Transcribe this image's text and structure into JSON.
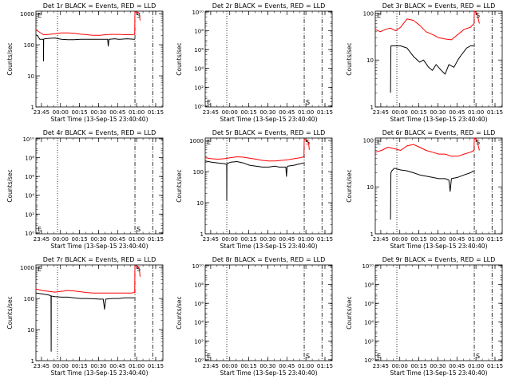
{
  "figure": {
    "xlabel": "Start Time (13-Sep-15 23:40:40)",
    "ylabel": "Counts/sec",
    "xticks": [
      "23:45",
      "00:00",
      "00:15",
      "00:30",
      "00:45",
      "01:00",
      "01:15"
    ],
    "xtick_minutes": [
      4.33,
      19.33,
      34.33,
      49.33,
      64.33,
      79.33,
      94.33
    ],
    "xlim_minutes": [
      0,
      100
    ],
    "vlines_minutes": {
      "dotted": 17,
      "dash_dot_1": 78,
      "dash_dot_2": 92
    },
    "colors": {
      "events": "#000000",
      "lld": "#ff0000"
    },
    "markers": {
      "start": "E",
      "end": "S"
    }
  },
  "chart_data": [
    {
      "type": "line",
      "title": "Det 1r BLACK = Events, RED = LLD",
      "scale": "log",
      "ylim": [
        1,
        1200
      ],
      "yticks": [
        "1",
        "10",
        "100",
        "1000"
      ],
      "series": [
        {
          "name": "Events",
          "color": "#000000",
          "x": [
            0,
            1.5,
            3,
            5.9,
            6.0,
            6.1,
            7,
            10,
            15,
            20,
            25,
            30,
            35,
            45,
            55,
            56.5,
            57,
            57.5,
            58,
            62,
            65,
            66,
            72,
            77.5,
            78
          ],
          "y": [
            210,
            190,
            150,
            150,
            30,
            150,
            155,
            160,
            165,
            150,
            145,
            145,
            150,
            150,
            150,
            150,
            90,
            150,
            150,
            155,
            150,
            150,
            155,
            150,
            150
          ]
        },
        {
          "name": "LLD",
          "color": "#ff0000",
          "x": [
            0,
            3,
            6,
            10,
            15,
            20,
            25,
            30,
            35,
            40,
            45,
            50,
            55,
            60,
            65,
            70,
            75,
            77.8,
            78,
            80.5,
            81.5,
            82
          ],
          "y": [
            300,
            250,
            210,
            215,
            225,
            240,
            240,
            235,
            220,
            210,
            200,
            200,
            210,
            215,
            215,
            210,
            210,
            215,
            1150,
            1100,
            1000,
            600
          ]
        }
      ]
    },
    {
      "type": "line",
      "title": "Det 2r BLACK = Events, RED = LLD",
      "scale": "log",
      "ylim": [
        0.8,
        12000000000
      ],
      "yticks": [
        "10⁰",
        "10²",
        "10⁴",
        "10⁶",
        "10⁸",
        "10¹⁰"
      ],
      "series": []
    },
    {
      "type": "line",
      "title": "Det 3r BLACK = Events, RED = LLD",
      "scale": "log",
      "ylim": [
        1,
        110
      ],
      "yticks": [
        "1",
        "10",
        "100"
      ],
      "series": [
        {
          "name": "Events",
          "color": "#000000",
          "x": [
            12,
            12.3,
            13,
            15,
            20,
            25,
            30,
            35,
            38,
            42,
            45,
            48,
            52,
            55,
            58,
            62,
            65,
            68,
            72,
            75,
            77.5
          ],
          "y": [
            2,
            20,
            20,
            20,
            20,
            18,
            12,
            9,
            10,
            7,
            6,
            8,
            6,
            5,
            8,
            7,
            10,
            13,
            18,
            20,
            20
          ]
        },
        {
          "name": "LLD",
          "color": "#ff0000",
          "x": [
            0,
            4,
            8,
            12,
            16,
            20,
            25,
            30,
            35,
            40,
            45,
            50,
            55,
            60,
            65,
            70,
            75,
            77.8,
            78,
            80,
            82
          ],
          "y": [
            45,
            40,
            45,
            48,
            42,
            50,
            75,
            70,
            55,
            40,
            35,
            30,
            28,
            27,
            35,
            45,
            50,
            60,
            110,
            100,
            60
          ]
        }
      ]
    },
    {
      "type": "line",
      "title": "Det 4r BLACK = Events, RED = LLD",
      "scale": "log",
      "ylim": [
        0.8,
        12000000000
      ],
      "yticks": [
        "10⁰",
        "10²",
        "10⁴",
        "10⁶",
        "10⁸",
        "10¹⁰"
      ],
      "series": []
    },
    {
      "type": "line",
      "title": "Det 5r BLACK = Events, RED = LLD",
      "scale": "log",
      "ylim": [
        1,
        1200
      ],
      "yticks": [
        "1",
        "10",
        "100",
        "1000"
      ],
      "series": [
        {
          "name": "Events",
          "color": "#000000",
          "x": [
            0,
            5,
            10,
            15,
            16.9,
            17,
            17.1,
            20,
            25,
            30,
            35,
            40,
            45,
            50,
            55,
            58,
            60,
            63.5,
            64,
            64.5,
            65,
            70,
            75,
            77.5
          ],
          "y": [
            220,
            200,
            190,
            180,
            170,
            12,
            180,
            200,
            210,
            190,
            160,
            150,
            140,
            140,
            150,
            140,
            140,
            140,
            70,
            140,
            150,
            160,
            180,
            190
          ]
        },
        {
          "name": "LLD",
          "color": "#ff0000",
          "x": [
            0,
            5,
            10,
            15,
            20,
            25,
            30,
            35,
            40,
            45,
            50,
            55,
            60,
            65,
            70,
            75,
            77.8,
            78,
            80,
            81.5,
            82
          ],
          "y": [
            280,
            260,
            250,
            260,
            280,
            300,
            290,
            270,
            250,
            230,
            220,
            220,
            230,
            240,
            260,
            280,
            300,
            1100,
            1050,
            800,
            500
          ]
        }
      ]
    },
    {
      "type": "line",
      "title": "Det 6r BLACK = Events, RED = LLD",
      "scale": "log",
      "ylim": [
        1,
        110
      ],
      "yticks": [
        "1",
        "10",
        "100"
      ],
      "series": [
        {
          "name": "Events",
          "color": "#000000",
          "x": [
            12,
            12.3,
            13,
            15,
            20,
            25,
            30,
            35,
            40,
            45,
            50,
            55,
            58,
            59,
            60,
            65,
            70,
            75,
            77.5
          ],
          "y": [
            2,
            20,
            22,
            25,
            23,
            22,
            20,
            18,
            17,
            16,
            15,
            15,
            14,
            8,
            15,
            16,
            18,
            20,
            22
          ]
        },
        {
          "name": "LLD",
          "color": "#ff0000",
          "x": [
            0,
            5,
            10,
            15,
            20,
            25,
            30,
            35,
            40,
            45,
            50,
            55,
            60,
            65,
            70,
            75,
            77.8,
            78,
            80,
            82
          ],
          "y": [
            55,
            60,
            70,
            65,
            60,
            75,
            80,
            70,
            60,
            55,
            50,
            50,
            45,
            45,
            50,
            55,
            60,
            110,
            100,
            60
          ]
        }
      ]
    },
    {
      "type": "line",
      "title": "Det 7r BLACK = Events, RED = LLD",
      "scale": "log",
      "ylim": [
        1,
        1200
      ],
      "yticks": [
        "1",
        "10",
        "100",
        "1000"
      ],
      "series": [
        {
          "name": "Events",
          "color": "#000000",
          "x": [
            0,
            5,
            10,
            11.9,
            12,
            12.1,
            15,
            20,
            25,
            30,
            35,
            40,
            45,
            50,
            53,
            54,
            55,
            60,
            65,
            70,
            75,
            77.5
          ],
          "y": [
            150,
            140,
            130,
            120,
            2,
            120,
            115,
            110,
            110,
            105,
            100,
            100,
            98,
            95,
            95,
            45,
            95,
            100,
            100,
            105,
            105,
            105
          ]
        },
        {
          "name": "LLD",
          "color": "#ff0000",
          "x": [
            0,
            5,
            10,
            15,
            20,
            25,
            30,
            35,
            40,
            45,
            50,
            55,
            60,
            65,
            70,
            75,
            77.8,
            78,
            80,
            81.5,
            82
          ],
          "y": [
            200,
            180,
            170,
            160,
            170,
            180,
            175,
            165,
            155,
            150,
            150,
            150,
            150,
            150,
            150,
            150,
            155,
            1150,
            1100,
            900,
            500
          ]
        }
      ]
    },
    {
      "type": "line",
      "title": "Det 8r BLACK = Events, RED = LLD",
      "scale": "log",
      "ylim": [
        0.8,
        12000000000
      ],
      "yticks": [
        "10⁰",
        "10²",
        "10⁴",
        "10⁶",
        "10⁸",
        "10¹⁰"
      ],
      "series": []
    },
    {
      "type": "line",
      "title": "Det 9r BLACK = Events, RED = LLD",
      "scale": "log",
      "ylim": [
        0.8,
        12000000000
      ],
      "yticks": [
        "10⁰",
        "10²",
        "10⁴",
        "10⁶",
        "10⁸",
        "10¹⁰"
      ],
      "series": []
    }
  ]
}
